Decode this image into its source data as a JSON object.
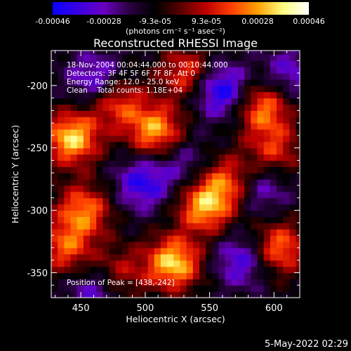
{
  "colorbar": {
    "ticks": [
      "-0.00046",
      "-0.00028",
      "-9.3e-05",
      "9.3e-05",
      "0.00028",
      "0.00046"
    ],
    "units": "(photons cm⁻² s⁻¹ asec⁻²)",
    "colors": [
      "#0b00ff",
      "#3a00e0",
      "#6a00c0",
      "#2a0040",
      "#000000",
      "#5a0000",
      "#c00000",
      "#ff4000",
      "#ffa000",
      "#ffff80",
      "#ffffff"
    ]
  },
  "chart_data": {
    "type": "heatmap",
    "title": "Reconstructed RHESSI Image",
    "xlabel": "Heliocentric X (arcsec)",
    "ylabel": "Heliocentric Y (arcsec)",
    "xlim": [
      427,
      620
    ],
    "ylim": [
      -370,
      -172
    ],
    "xticks": [
      450,
      500,
      550,
      600
    ],
    "yticks": [
      -200,
      -250,
      -300,
      -350
    ],
    "value_range": [
      -0.00046,
      0.00046
    ],
    "hotspots": [
      {
        "x": 443,
        "y": -242,
        "v": 0.00046
      },
      {
        "x": 522,
        "y": -342,
        "v": 0.00046
      },
      {
        "x": 546,
        "y": -297,
        "v": 0.0004
      },
      {
        "x": 508,
        "y": -236,
        "v": 0.0004
      },
      {
        "x": 452,
        "y": -300,
        "v": 0.00035
      },
      {
        "x": 604,
        "y": -330,
        "v": 0.00035
      },
      {
        "x": 592,
        "y": -218,
        "v": 0.00035
      },
      {
        "x": 564,
        "y": -277,
        "v": 0.0003
      },
      {
        "x": 478,
        "y": -213,
        "v": 0.0003
      },
      {
        "x": 533,
        "y": -190,
        "v": 0.0003
      },
      {
        "x": 438,
        "y": -330,
        "v": 0.0003
      },
      {
        "x": 600,
        "y": -252,
        "v": 0.00025
      },
      {
        "x": 480,
        "y": -350,
        "v": 0.0002
      }
    ],
    "coldspots": [
      {
        "x": 558,
        "y": -203,
        "v": -0.00035
      },
      {
        "x": 462,
        "y": -195,
        "v": -0.00025
      },
      {
        "x": 498,
        "y": -278,
        "v": -0.00028
      },
      {
        "x": 590,
        "y": -282,
        "v": -0.0002
      },
      {
        "x": 612,
        "y": -190,
        "v": -0.0002
      },
      {
        "x": 575,
        "y": -340,
        "v": -0.00025
      },
      {
        "x": 460,
        "y": -365,
        "v": -0.0002
      },
      {
        "x": 530,
        "y": -262,
        "v": -0.00015
      }
    ]
  },
  "info": {
    "line1": "18-Nov-2004 00:04:44.000 to 00:10:44.000",
    "line2": "Detectors: 3F 4F 5F 6F 7F 8F, Att 0",
    "line3": "Energy Range: 12.0 - 25.0 keV",
    "line4": "Clean    Total counts: 1.18E+04",
    "peak": "Position of Peak = [438,-242]"
  },
  "datestamp": "5-May-2022 02:29"
}
